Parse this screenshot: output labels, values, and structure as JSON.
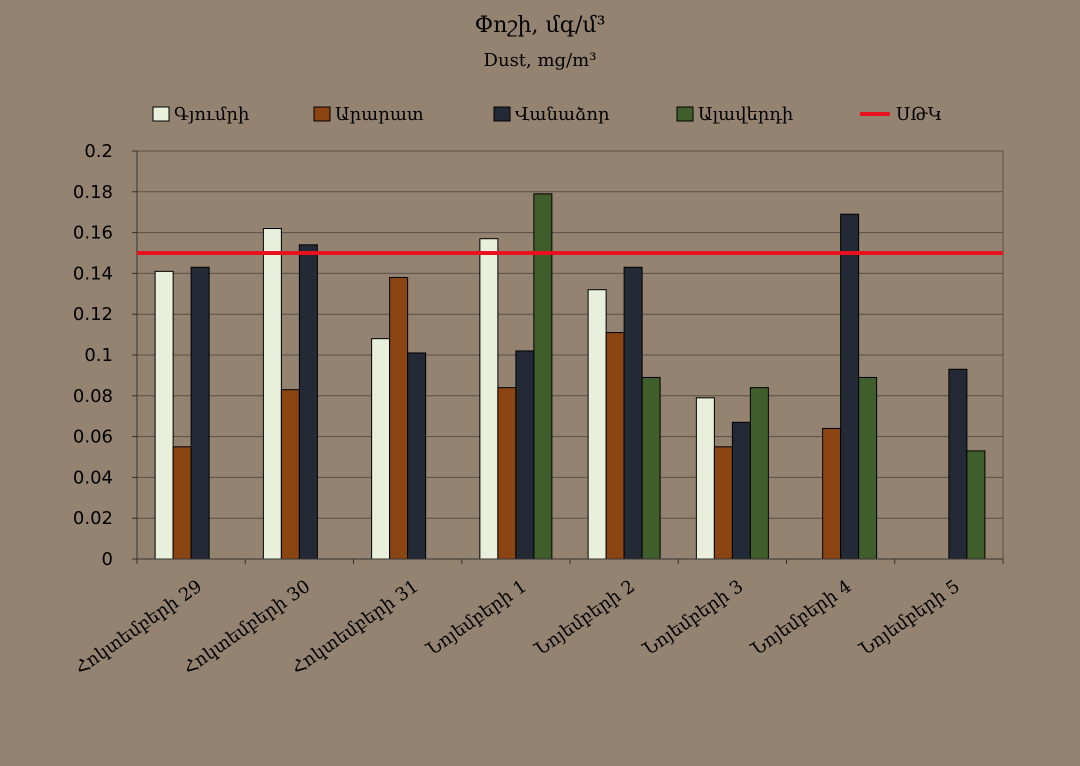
{
  "chart_data": {
    "type": "bar",
    "title": "Փոշի, մգ/մ³",
    "subtitle": "Dust, mg/m³",
    "categories": [
      "Հոկտեմբերի 29",
      "Հոկտեմբերի 30",
      "Հոկտեմբերի 31",
      "Նոյեմբերի 1",
      "Նոյեմբերի 2",
      "Նոյեմբերի 3",
      "Նոյեմբերի 4",
      "Նոյեմբերի 5"
    ],
    "series": [
      {
        "name": "Գյումրի",
        "color": "#e8f0dc",
        "values": [
          0.141,
          0.162,
          0.108,
          0.157,
          0.132,
          0.079,
          null,
          null
        ]
      },
      {
        "name": "Արարատ",
        "color": "#8b4513",
        "values": [
          0.055,
          0.083,
          0.138,
          0.084,
          0.111,
          0.055,
          0.064,
          null
        ]
      },
      {
        "name": "Վանաձոր",
        "color": "#242a35",
        "values": [
          0.143,
          0.154,
          0.101,
          0.102,
          0.143,
          0.067,
          0.169,
          0.093
        ]
      },
      {
        "name": "Ալավերդի",
        "color": "#3f5e2c",
        "values": [
          null,
          null,
          null,
          0.179,
          0.089,
          0.084,
          0.089,
          0.053
        ]
      }
    ],
    "reference_line": {
      "name": "ՍԹԿ",
      "value": 0.15,
      "color": "#e8121e"
    },
    "ylim": [
      0,
      0.2
    ],
    "yticks": [
      "0",
      "0.02",
      "0.04",
      "0.06",
      "0.08",
      "0.1",
      "0.12",
      "0.14",
      "0.16",
      "0.18",
      "0.2"
    ],
    "grid": true,
    "legend_position": "top"
  }
}
